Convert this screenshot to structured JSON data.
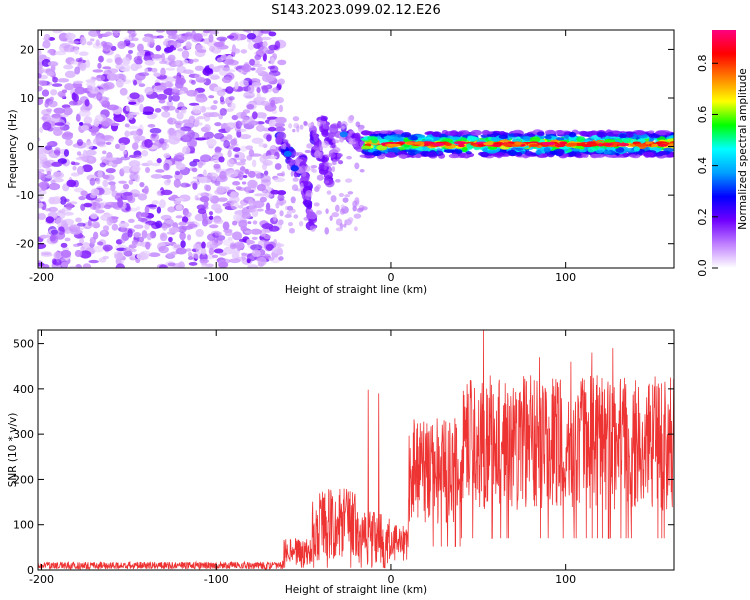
{
  "title": "S143.2023.099.02.12.E26",
  "chart_data": [
    {
      "type": "heatmap",
      "xlabel": "Height of straight line (km)",
      "ylabel": "Frequency (Hz)",
      "xlim": [
        -202,
        162
      ],
      "ylim": [
        -25,
        24
      ],
      "xticks": [
        -200,
        -100,
        0,
        100
      ],
      "yticks": [
        -20,
        -10,
        0,
        10,
        20
      ],
      "colorbar": {
        "label": "Normalized spectral amplitude",
        "range": [
          0,
          0.93
        ],
        "ticks": [
          "0.0",
          "0.2",
          "0.4",
          "0.6",
          "0.8"
        ],
        "colors": [
          "#ffffff",
          "#c080ff",
          "#7000ff",
          "#0000ff",
          "#00a0ff",
          "#00ffff",
          "#00ff00",
          "#ffff00",
          "#ff8000",
          "#ff0000",
          "#ff0080"
        ]
      },
      "regions": [
        {
          "name": "noise",
          "x_range": [
            -202,
            -62
          ],
          "y_range": [
            -25,
            24
          ],
          "amplitude": [
            0.0,
            0.1
          ]
        },
        {
          "name": "transition",
          "x_range": [
            -62,
            -15
          ],
          "y_range": [
            -18,
            6
          ],
          "amplitude": [
            0.05,
            0.35
          ]
        },
        {
          "name": "carrier",
          "x_range": [
            -15,
            162
          ],
          "y_center": 0.5,
          "width_hz": 2.5,
          "amplitude": [
            0.3,
            0.93
          ]
        }
      ]
    },
    {
      "type": "line",
      "xlabel": "Height of straight line (km)",
      "ylabel": "SNR (10 * v/v)",
      "xlim": [
        -202,
        162
      ],
      "ylim": [
        0,
        530
      ],
      "xticks": [
        -200,
        -100,
        0,
        100
      ],
      "yticks": [
        0,
        100,
        200,
        300,
        400,
        500
      ],
      "color": "#ee3333",
      "segments": [
        {
          "x": [
            -202,
            -62
          ],
          "mean": 10,
          "amplitude": 8
        },
        {
          "x": [
            -62,
            -45
          ],
          "mean": 40,
          "amplitude": 30
        },
        {
          "x": [
            -45,
            -20
          ],
          "mean": 100,
          "amplitude": 80
        },
        {
          "x": [
            -20,
            0
          ],
          "mean": 70,
          "amplitude": 60
        },
        {
          "x": [
            0,
            10
          ],
          "mean": 60,
          "amplitude": 40
        },
        {
          "x": [
            10,
            40
          ],
          "mean": 220,
          "amplitude": 120
        },
        {
          "x": [
            40,
            162
          ],
          "mean": 280,
          "amplitude": 150
        }
      ],
      "peaks": [
        {
          "x": -13,
          "y": 398
        },
        {
          "x": -7,
          "y": 390
        },
        {
          "x": 53,
          "y": 530
        },
        {
          "x": 62,
          "y": 420
        },
        {
          "x": 85,
          "y": 470
        },
        {
          "x": 103,
          "y": 460
        },
        {
          "x": 115,
          "y": 480
        },
        {
          "x": 127,
          "y": 490
        },
        {
          "x": 160,
          "y": 425
        }
      ]
    }
  ]
}
